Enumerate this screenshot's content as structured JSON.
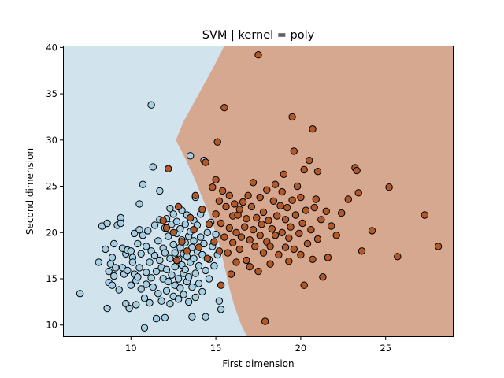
{
  "chart_data": {
    "type": "scatter",
    "title": "SVM | kernel = poly",
    "xlabel": "First dimension",
    "ylabel": "Second dimension",
    "xlim": [
      6.0,
      29.0
    ],
    "ylim": [
      8.7,
      40.2
    ],
    "xticks": [
      10,
      15,
      20,
      25
    ],
    "yticks": [
      10,
      15,
      20,
      25,
      30,
      35,
      40
    ],
    "grid": false,
    "legend": "none",
    "colors": {
      "class_0_region": "#d1e4ee",
      "class_1_region": "#d7a890",
      "class_0_point": "#a6cee3",
      "class_1_point": "#b15928",
      "edge": "#000000"
    },
    "decision_boundary": [
      [
        16.85,
        8.7
      ],
      [
        16.5,
        10.0
      ],
      [
        16.1,
        12.0
      ],
      [
        15.8,
        14.0
      ],
      [
        15.55,
        16.0
      ],
      [
        15.3,
        18.0
      ],
      [
        15.0,
        20.0
      ],
      [
        14.6,
        22.0
      ],
      [
        14.15,
        24.0
      ],
      [
        13.7,
        26.0
      ],
      [
        13.2,
        28.0
      ],
      [
        12.65,
        30.0
      ],
      [
        13.1,
        32.0
      ],
      [
        13.7,
        34.0
      ],
      [
        14.3,
        36.0
      ],
      [
        14.9,
        38.0
      ],
      [
        15.5,
        40.2
      ]
    ],
    "series": [
      {
        "values": [
          [
            7.0,
            13.4
          ],
          [
            8.1,
            16.8
          ],
          [
            8.3,
            20.7
          ],
          [
            8.5,
            18.2
          ],
          [
            8.6,
            21.0
          ],
          [
            8.6,
            11.8
          ],
          [
            8.7,
            15.8
          ],
          [
            8.7,
            14.6
          ],
          [
            8.8,
            16.6
          ],
          [
            8.9,
            14.3
          ],
          [
            8.9,
            17.3
          ],
          [
            9.0,
            18.8
          ],
          [
            9.0,
            15.3
          ],
          [
            9.1,
            16.2
          ],
          [
            9.2,
            20.8
          ],
          [
            9.3,
            13.8
          ],
          [
            9.4,
            21.6
          ],
          [
            9.4,
            21.0
          ],
          [
            9.5,
            18.3
          ],
          [
            9.5,
            16.2
          ],
          [
            9.6,
            15.5
          ],
          [
            9.7,
            12.3
          ],
          [
            9.7,
            17.7
          ],
          [
            9.8,
            15.9
          ],
          [
            9.8,
            18.1
          ],
          [
            9.9,
            11.8
          ],
          [
            10.0,
            18.0
          ],
          [
            10.0,
            14.3
          ],
          [
            10.1,
            17.3
          ],
          [
            10.1,
            16.8
          ],
          [
            10.2,
            15.5
          ],
          [
            10.2,
            19.9
          ],
          [
            10.3,
            12.2
          ],
          [
            10.3,
            14.8
          ],
          [
            10.4,
            18.8
          ],
          [
            10.4,
            15.2
          ],
          [
            10.5,
            20.3
          ],
          [
            10.5,
            16.2
          ],
          [
            10.5,
            23.1
          ],
          [
            10.6,
            17.7
          ],
          [
            10.6,
            13.9
          ],
          [
            10.7,
            19.7
          ],
          [
            10.7,
            25.2
          ],
          [
            10.8,
            12.9
          ],
          [
            10.8,
            9.7
          ],
          [
            10.9,
            15.7
          ],
          [
            10.9,
            18.5
          ],
          [
            10.9,
            14.4
          ],
          [
            11.0,
            20.2
          ],
          [
            11.1,
            16.8
          ],
          [
            11.1,
            12.4
          ],
          [
            11.2,
            33.8
          ],
          [
            11.2,
            18.0
          ],
          [
            11.2,
            15.1
          ],
          [
            11.3,
            14.1
          ],
          [
            11.3,
            27.1
          ],
          [
            11.4,
            17.5
          ],
          [
            11.4,
            20.8
          ],
          [
            11.5,
            10.7
          ],
          [
            11.5,
            15.8
          ],
          [
            11.6,
            19.1
          ],
          [
            11.6,
            13.4
          ],
          [
            11.7,
            17.0
          ],
          [
            11.7,
            24.5
          ],
          [
            11.7,
            21.4
          ],
          [
            11.8,
            12.6
          ],
          [
            11.8,
            16.2
          ],
          [
            11.9,
            18.3
          ],
          [
            11.9,
            15.0
          ],
          [
            12.0,
            20.5
          ],
          [
            12.0,
            10.8
          ],
          [
            12.0,
            17.8
          ],
          [
            12.1,
            13.7
          ],
          [
            12.1,
            21.5
          ],
          [
            12.1,
            16.0
          ],
          [
            12.2,
            19.6
          ],
          [
            12.2,
            14.7
          ],
          [
            12.3,
            22.6
          ],
          [
            12.3,
            12.3
          ],
          [
            12.3,
            17.2
          ],
          [
            12.4,
            20.9
          ],
          [
            12.4,
            15.4
          ],
          [
            12.5,
            18.7
          ],
          [
            12.5,
            13.1
          ],
          [
            12.5,
            22.0
          ],
          [
            12.6,
            16.3
          ],
          [
            12.6,
            17.8
          ],
          [
            12.6,
            14.3
          ],
          [
            12.7,
            19.9
          ],
          [
            12.7,
            21.2
          ],
          [
            12.8,
            15.0
          ],
          [
            12.8,
            17.1
          ],
          [
            12.8,
            12.8
          ],
          [
            12.9,
            18.4
          ],
          [
            12.9,
            20.4
          ],
          [
            12.9,
            14.0
          ],
          [
            13.0,
            16.5
          ],
          [
            13.0,
            22.4
          ],
          [
            13.0,
            19.2
          ],
          [
            13.1,
            15.6
          ],
          [
            13.1,
            17.7
          ],
          [
            13.1,
            13.3
          ],
          [
            13.2,
            20.9
          ],
          [
            13.2,
            18.9
          ],
          [
            13.2,
            16.0
          ],
          [
            13.3,
            14.7
          ],
          [
            13.3,
            21.9
          ],
          [
            13.3,
            17.4
          ],
          [
            13.4,
            19.6
          ],
          [
            13.4,
            15.2
          ],
          [
            13.4,
            12.5
          ],
          [
            13.5,
            28.3
          ],
          [
            13.5,
            20.1
          ],
          [
            13.5,
            16.8
          ],
          [
            13.6,
            18.4
          ],
          [
            13.6,
            14.1
          ],
          [
            13.6,
            10.9
          ],
          [
            13.7,
            21.3
          ],
          [
            13.7,
            17.2
          ],
          [
            13.7,
            19.1
          ],
          [
            13.8,
            15.6
          ],
          [
            13.8,
            23.8
          ],
          [
            13.8,
            13.0
          ],
          [
            13.9,
            18.0
          ],
          [
            13.9,
            20.8
          ],
          [
            14.0,
            16.4
          ],
          [
            14.0,
            14.5
          ],
          [
            14.1,
            19.5
          ],
          [
            14.1,
            22.0
          ],
          [
            14.2,
            17.6
          ],
          [
            14.2,
            13.6
          ],
          [
            14.3,
            27.8
          ],
          [
            14.3,
            18.8
          ],
          [
            14.4,
            15.9
          ],
          [
            14.4,
            10.9
          ],
          [
            14.5,
            20.0
          ],
          [
            14.6,
            17.1
          ],
          [
            14.6,
            15.0
          ],
          [
            14.7,
            21.1
          ],
          [
            14.8,
            18.5
          ],
          [
            14.9,
            16.4
          ],
          [
            15.0,
            19.8
          ],
          [
            15.1,
            17.6
          ],
          [
            15.2,
            12.6
          ],
          [
            15.3,
            11.7
          ]
        ]
      },
      {
        "values": [
          [
            11.9,
            21.3
          ],
          [
            12.1,
            20.5
          ],
          [
            12.2,
            26.9
          ],
          [
            12.5,
            20.0
          ],
          [
            12.7,
            17.0
          ],
          [
            12.8,
            22.8
          ],
          [
            13.0,
            19.0
          ],
          [
            13.3,
            18.0
          ],
          [
            13.5,
            21.6
          ],
          [
            13.7,
            20.3
          ],
          [
            13.8,
            24.0
          ],
          [
            14.0,
            18.4
          ],
          [
            14.2,
            22.5
          ],
          [
            14.4,
            27.6
          ],
          [
            14.5,
            17.2
          ],
          [
            14.6,
            20.9
          ],
          [
            14.8,
            24.9
          ],
          [
            14.9,
            19.0
          ],
          [
            15.0,
            22.0
          ],
          [
            15.0,
            25.7
          ],
          [
            15.1,
            29.8
          ],
          [
            15.2,
            18.0
          ],
          [
            15.2,
            23.4
          ],
          [
            15.3,
            21.0
          ],
          [
            15.3,
            14.3
          ],
          [
            15.4,
            24.5
          ],
          [
            15.5,
            33.5
          ],
          [
            15.5,
            19.5
          ],
          [
            15.6,
            22.8
          ],
          [
            15.7,
            17.8
          ],
          [
            15.8,
            20.5
          ],
          [
            15.8,
            24.0
          ],
          [
            15.9,
            15.5
          ],
          [
            16.0,
            21.8
          ],
          [
            16.0,
            18.9
          ],
          [
            16.1,
            23.1
          ],
          [
            16.2,
            16.8
          ],
          [
            16.2,
            20.0
          ],
          [
            16.3,
            21.9
          ],
          [
            16.4,
            22.5
          ],
          [
            16.4,
            18.2
          ],
          [
            16.5,
            19.5
          ],
          [
            16.6,
            23.3
          ],
          [
            16.7,
            20.6
          ],
          [
            16.8,
            17.0
          ],
          [
            16.8,
            21.5
          ],
          [
            16.9,
            24.0
          ],
          [
            17.0,
            19.2
          ],
          [
            17.0,
            16.3
          ],
          [
            17.1,
            22.8
          ],
          [
            17.2,
            20.3
          ],
          [
            17.2,
            25.4
          ],
          [
            17.3,
            18.5
          ],
          [
            17.4,
            21.6
          ],
          [
            17.5,
            39.2
          ],
          [
            17.5,
            15.8
          ],
          [
            17.6,
            23.8
          ],
          [
            17.6,
            19.7
          ],
          [
            17.7,
            20.9
          ],
          [
            17.8,
            17.8
          ],
          [
            17.8,
            22.2
          ],
          [
            17.9,
            10.4
          ],
          [
            18.0,
            19.0
          ],
          [
            18.0,
            24.6
          ],
          [
            18.1,
            21.3
          ],
          [
            18.2,
            16.6
          ],
          [
            18.2,
            18.5
          ],
          [
            18.3,
            20.4
          ],
          [
            18.4,
            23.4
          ],
          [
            18.5,
            19.7
          ],
          [
            18.5,
            25.2
          ],
          [
            18.6,
            21.8
          ],
          [
            18.7,
            17.6
          ],
          [
            18.8,
            22.9
          ],
          [
            18.9,
            20.0
          ],
          [
            18.9,
            24.4
          ],
          [
            19.0,
            26.3
          ],
          [
            19.1,
            18.4
          ],
          [
            19.1,
            21.4
          ],
          [
            19.2,
            22.7
          ],
          [
            19.3,
            19.4
          ],
          [
            19.3,
            16.9
          ],
          [
            19.4,
            20.6
          ],
          [
            19.5,
            32.5
          ],
          [
            19.5,
            23.5
          ],
          [
            19.6,
            28.8
          ],
          [
            19.6,
            18.2
          ],
          [
            19.7,
            21.9
          ],
          [
            19.8,
            25.0
          ],
          [
            19.9,
            19.9
          ],
          [
            20.0,
            23.8
          ],
          [
            20.0,
            17.6
          ],
          [
            20.1,
            21.0
          ],
          [
            20.2,
            26.8
          ],
          [
            20.2,
            14.3
          ],
          [
            20.3,
            22.4
          ],
          [
            20.4,
            18.8
          ],
          [
            20.5,
            27.8
          ],
          [
            20.6,
            20.3
          ],
          [
            20.7,
            31.2
          ],
          [
            20.7,
            17.1
          ],
          [
            20.8,
            22.7
          ],
          [
            20.9,
            23.6
          ],
          [
            21.0,
            19.3
          ],
          [
            21.0,
            26.6
          ],
          [
            21.2,
            21.4
          ],
          [
            21.3,
            15.2
          ],
          [
            21.5,
            22.3
          ],
          [
            21.6,
            17.3
          ],
          [
            21.8,
            20.7
          ],
          [
            22.1,
            19.7
          ],
          [
            22.4,
            22.1
          ],
          [
            22.8,
            23.6
          ],
          [
            23.2,
            27.0
          ],
          [
            23.3,
            26.7
          ],
          [
            23.4,
            24.3
          ],
          [
            23.6,
            18.0
          ],
          [
            24.2,
            20.2
          ],
          [
            25.2,
            24.9
          ],
          [
            25.7,
            17.4
          ],
          [
            27.3,
            21.9
          ],
          [
            28.1,
            18.5
          ]
        ]
      }
    ]
  }
}
